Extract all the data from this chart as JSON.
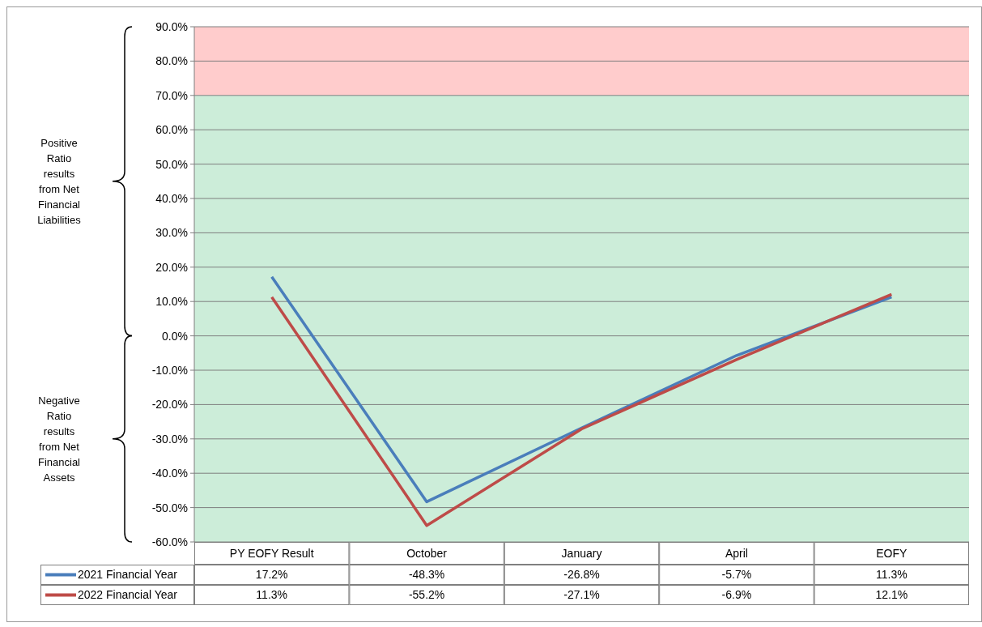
{
  "chart_data": {
    "type": "line",
    "categories": [
      "PY EOFY Result",
      "October",
      "January",
      "April",
      "EOFY"
    ],
    "series": [
      {
        "name": "2021 Financial Year",
        "color": "#4a7ebb",
        "values": [
          17.2,
          -48.3,
          -26.8,
          -5.7,
          11.3
        ],
        "value_labels": [
          "17.2%",
          "-48.3%",
          "-26.8%",
          "-5.7%",
          "11.3%"
        ]
      },
      {
        "name": "2022 Financial Year",
        "color": "#be4b48",
        "values": [
          11.3,
          -55.2,
          -27.1,
          -6.9,
          12.1
        ],
        "value_labels": [
          "11.3%",
          "-55.2%",
          "-27.1%",
          "-6.9%",
          "12.1%"
        ]
      }
    ],
    "ylim": [
      -60,
      90
    ],
    "yticks": [
      {
        "value": -60,
        "label": "-60.0%"
      },
      {
        "value": -50,
        "label": "-50.0%"
      },
      {
        "value": -40,
        "label": "-40.0%"
      },
      {
        "value": -30,
        "label": "-30.0%"
      },
      {
        "value": -20,
        "label": "-20.0%"
      },
      {
        "value": -10,
        "label": "-10.0%"
      },
      {
        "value": 0,
        "label": "0.0%"
      },
      {
        "value": 10,
        "label": "10.0%"
      },
      {
        "value": 20,
        "label": "20.0%"
      },
      {
        "value": 30,
        "label": "30.0%"
      },
      {
        "value": 40,
        "label": "40.0%"
      },
      {
        "value": 50,
        "label": "50.0%"
      },
      {
        "value": 60,
        "label": "60.0%"
      },
      {
        "value": 70,
        "label": "70.0%"
      },
      {
        "value": 80,
        "label": "80.0%"
      },
      {
        "value": 90,
        "label": "90.0%"
      }
    ],
    "bands": [
      {
        "axis": "y",
        "from": 70,
        "to": 90,
        "color": "#ffcccc"
      },
      {
        "axis": "y",
        "from": -60,
        "to": 70,
        "color": "#ccedd9"
      }
    ],
    "annotations": [
      "Positive Ratio results from Net Financial Liabilities",
      "Negative Ratio results from Net Financial Assets"
    ],
    "grid": "y",
    "legend": "bottom",
    "marker": "none",
    "line_style": "solid"
  }
}
